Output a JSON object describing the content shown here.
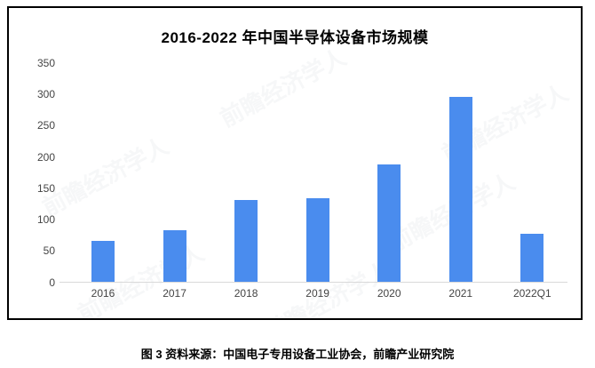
{
  "page": {
    "caption": "图 3 资料来源：中国电子专用设备工业协会，前瞻产业研究院",
    "watermark_text": "前瞻经济学人"
  },
  "colors": {
    "bar": "#4a8cee",
    "axis_line": "#d9d9d9",
    "axis_text": "#444444",
    "frame_border": "#000000",
    "background": "#ffffff"
  },
  "chart_data": {
    "type": "bar",
    "title": "2016-2022 年中国半导体设备市场规模",
    "categories": [
      "2016",
      "2017",
      "2018",
      "2019",
      "2020",
      "2021",
      "2022Q1"
    ],
    "values": [
      65,
      82,
      131,
      134,
      187,
      296,
      76
    ],
    "xlabel": "",
    "ylabel": "",
    "ylim": [
      0,
      350
    ],
    "yticks": [
      350,
      300,
      250,
      200,
      150,
      100,
      50,
      0
    ],
    "grid": false,
    "legend": "none"
  }
}
